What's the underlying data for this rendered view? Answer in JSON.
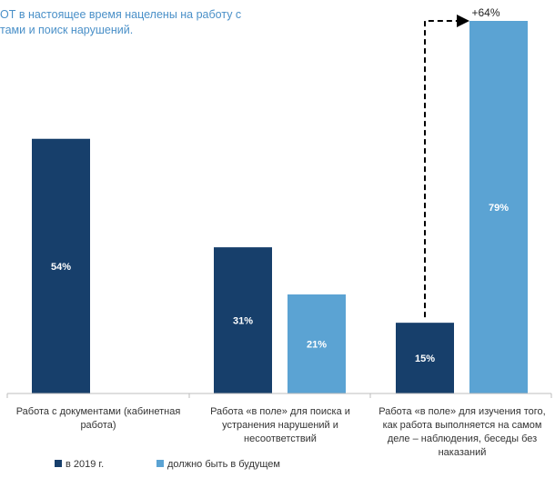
{
  "chart_data": {
    "type": "bar",
    "title_lines": [
      "ОТ в настоящее время нацелены на работу с",
      "тами и поиск нарушений."
    ],
    "categories": [
      [
        "Работа с документами (кабинетная",
        "работа)"
      ],
      [
        "Работа «в поле» для поиска и",
        "устранения нарушений и",
        "несоответствий"
      ],
      [
        "Работа «в поле» для изучения того,",
        "как работа выполняется на самом",
        "деле – наблюдения, беседы без",
        "наказаний"
      ]
    ],
    "series": [
      {
        "name": "в 2019 г.",
        "color": "#173f6b",
        "values": [
          54,
          31,
          15
        ],
        "labels": [
          "54%",
          "31%",
          "15%"
        ]
      },
      {
        "name": "должно быть в будущем",
        "color": "#5ba3d3",
        "values": [
          null,
          21,
          79
        ],
        "labels": [
          null,
          "21%",
          "79%"
        ]
      }
    ],
    "ylim": [
      0,
      79
    ],
    "grid": false,
    "legend_position": "bottom-left",
    "annotation": {
      "text": "+64%",
      "from": {
        "category": 2,
        "series": 0
      },
      "to": {
        "category": 2,
        "series": 1
      },
      "style": "dashed-arrow"
    }
  }
}
